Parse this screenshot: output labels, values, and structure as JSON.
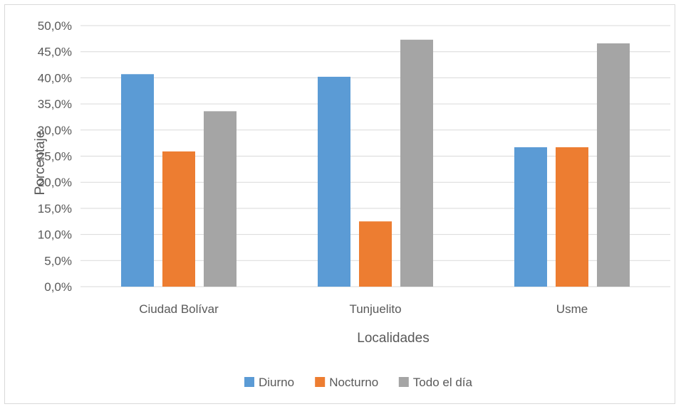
{
  "chart_data": {
    "type": "bar",
    "title": "",
    "xlabel": "Localidades",
    "ylabel": "Porcentaje",
    "categories": [
      "Ciudad Bolívar",
      "Tunjuelito",
      "Usme"
    ],
    "series": [
      {
        "name": "Diurno",
        "color": "#5b9bd5",
        "values": [
          40.7,
          40.2,
          26.7
        ]
      },
      {
        "name": "Nocturno",
        "color": "#ed7d31",
        "values": [
          25.9,
          12.5,
          26.7
        ]
      },
      {
        "name": "Todo el día",
        "color": "#a5a5a5",
        "values": [
          33.6,
          47.3,
          46.6
        ]
      }
    ],
    "ylim": [
      0,
      50
    ],
    "y_ticks": [
      "0,0%",
      "5,0%",
      "10,0%",
      "15,0%",
      "20,0%",
      "25,0%",
      "30,0%",
      "35,0%",
      "40,0%",
      "45,0%",
      "50,0%"
    ],
    "grid": true,
    "legend_position": "bottom"
  }
}
